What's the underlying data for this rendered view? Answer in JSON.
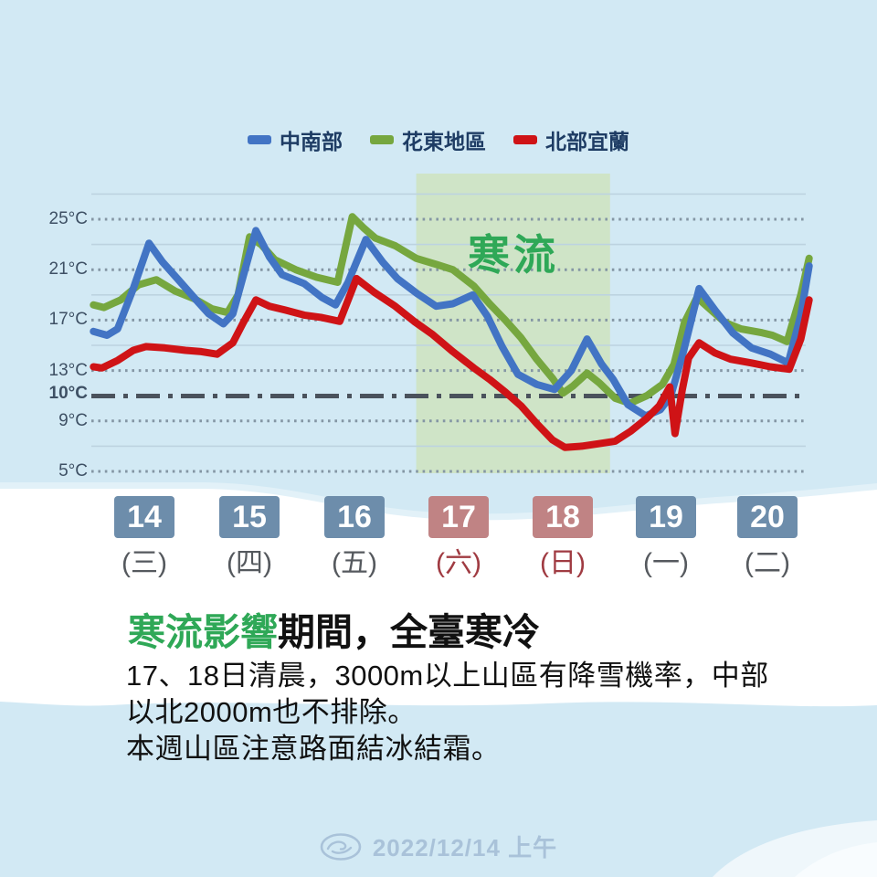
{
  "colors": {
    "background": "#d2e9f4",
    "band_white": "#ffffff",
    "band_fringe": "#e2f1f8",
    "line_blue": "#4274c4",
    "line_green": "#76a73f",
    "line_red": "#cf1316",
    "zone_fill": "#cfe4c7",
    "zone_label_green": "#2fa857",
    "grid_dotted": "#8496a4",
    "grid_minor": "#bdd3e0",
    "threshold": "#4a525c",
    "axis_label": "#3e5064",
    "legend_text": "#1e3c64",
    "date_box_blue": "#6d8dab",
    "date_box_red": "#c08384",
    "weekday_gray": "#55595e",
    "weekday_red": "#a03b42",
    "heading_green": "#2fa857",
    "footer_text": "#a9c2d9"
  },
  "legend": [
    {
      "label": "中南部",
      "color": "#4274c4"
    },
    {
      "label": "花東地區",
      "color": "#76a73f"
    },
    {
      "label": "北部宜蘭",
      "color": "#cf1316"
    }
  ],
  "chart_data": {
    "type": "line",
    "x_range": [
      13.6,
      20.45
    ],
    "ylim": [
      5,
      27
    ],
    "grid": true,
    "legend_position": "top-center",
    "y_ticks": [
      {
        "label": "25°C",
        "temp": 25,
        "style": "dotted"
      },
      {
        "label": "21°C",
        "temp": 21,
        "style": "dotted"
      },
      {
        "label": "17°C",
        "temp": 17,
        "style": "dotted"
      },
      {
        "label": "13°C",
        "temp": 13,
        "style": "dotted"
      },
      {
        "label": "10°C",
        "temp": 10,
        "style": "threshold"
      },
      {
        "label": "9°C",
        "temp": 9,
        "style": "dotted"
      },
      {
        "label": "5°C",
        "temp": 5,
        "style": "dotted"
      }
    ],
    "minor_gridlines": [
      27,
      23,
      19,
      15,
      7
    ],
    "cold_zone": {
      "label": "寒流",
      "x_start": 16.7,
      "x_end": 18.55
    },
    "series": [
      {
        "name": "花東地區",
        "color": "#76a73f",
        "points": [
          [
            13.62,
            18.2
          ],
          [
            13.72,
            18.0
          ],
          [
            13.88,
            18.6
          ],
          [
            14.05,
            19.8
          ],
          [
            14.22,
            20.2
          ],
          [
            14.4,
            19.3
          ],
          [
            14.58,
            18.7
          ],
          [
            14.75,
            17.9
          ],
          [
            14.9,
            17.6
          ],
          [
            15.0,
            19.0
          ],
          [
            15.11,
            23.6
          ],
          [
            15.22,
            23.0
          ],
          [
            15.35,
            21.8
          ],
          [
            15.55,
            21.0
          ],
          [
            15.75,
            20.4
          ],
          [
            15.95,
            20.0
          ],
          [
            16.09,
            25.2
          ],
          [
            16.2,
            24.3
          ],
          [
            16.31,
            23.5
          ],
          [
            16.5,
            22.9
          ],
          [
            16.7,
            21.9
          ],
          [
            16.9,
            21.4
          ],
          [
            17.05,
            21.0
          ],
          [
            17.25,
            19.7
          ],
          [
            17.4,
            18.3
          ],
          [
            17.55,
            17.0
          ],
          [
            17.7,
            15.6
          ],
          [
            17.85,
            13.9
          ],
          [
            18.0,
            12.4
          ],
          [
            18.1,
            11.2
          ],
          [
            18.2,
            11.8
          ],
          [
            18.33,
            12.8
          ],
          [
            18.45,
            12.0
          ],
          [
            18.6,
            10.8
          ],
          [
            18.74,
            10.4
          ],
          [
            18.9,
            11.0
          ],
          [
            19.05,
            11.9
          ],
          [
            19.16,
            13.5
          ],
          [
            19.26,
            16.8
          ],
          [
            19.38,
            18.8
          ],
          [
            19.5,
            17.9
          ],
          [
            19.65,
            16.8
          ],
          [
            19.8,
            16.3
          ],
          [
            20.0,
            16.0
          ],
          [
            20.1,
            15.8
          ],
          [
            20.24,
            15.3
          ],
          [
            20.37,
            19.0
          ],
          [
            20.45,
            21.9
          ]
        ]
      },
      {
        "name": "中南部",
        "color": "#4274c4",
        "points": [
          [
            13.62,
            16.1
          ],
          [
            13.75,
            15.8
          ],
          [
            13.85,
            16.3
          ],
          [
            14.0,
            19.5
          ],
          [
            14.15,
            23.1
          ],
          [
            14.28,
            21.6
          ],
          [
            14.43,
            20.2
          ],
          [
            14.6,
            18.6
          ],
          [
            14.72,
            17.5
          ],
          [
            14.86,
            16.7
          ],
          [
            14.95,
            17.5
          ],
          [
            15.05,
            20.5
          ],
          [
            15.17,
            24.1
          ],
          [
            15.3,
            22.0
          ],
          [
            15.42,
            20.6
          ],
          [
            15.63,
            19.9
          ],
          [
            15.8,
            18.8
          ],
          [
            15.93,
            18.2
          ],
          [
            16.05,
            20.0
          ],
          [
            16.22,
            23.4
          ],
          [
            16.38,
            21.6
          ],
          [
            16.52,
            20.3
          ],
          [
            16.71,
            19.1
          ],
          [
            16.89,
            18.1
          ],
          [
            17.05,
            18.3
          ],
          [
            17.24,
            19.0
          ],
          [
            17.38,
            17.3
          ],
          [
            17.52,
            14.9
          ],
          [
            17.67,
            12.7
          ],
          [
            17.85,
            11.9
          ],
          [
            18.02,
            11.5
          ],
          [
            18.18,
            13.0
          ],
          [
            18.33,
            15.5
          ],
          [
            18.47,
            13.5
          ],
          [
            18.58,
            12.3
          ],
          [
            18.72,
            10.3
          ],
          [
            18.89,
            9.4
          ],
          [
            19.03,
            9.9
          ],
          [
            19.13,
            11.0
          ],
          [
            19.25,
            14.5
          ],
          [
            19.4,
            19.5
          ],
          [
            19.56,
            17.7
          ],
          [
            19.72,
            16.0
          ],
          [
            19.9,
            14.8
          ],
          [
            20.08,
            14.3
          ],
          [
            20.25,
            13.6
          ],
          [
            20.37,
            17.4
          ],
          [
            20.45,
            21.3
          ]
        ]
      },
      {
        "name": "北部宜蘭",
        "color": "#cf1316",
        "points": [
          [
            13.62,
            13.3
          ],
          [
            13.7,
            13.2
          ],
          [
            13.85,
            13.8
          ],
          [
            14.0,
            14.6
          ],
          [
            14.12,
            14.9
          ],
          [
            14.3,
            14.8
          ],
          [
            14.5,
            14.6
          ],
          [
            14.65,
            14.5
          ],
          [
            14.8,
            14.3
          ],
          [
            14.95,
            15.2
          ],
          [
            15.05,
            16.8
          ],
          [
            15.17,
            18.6
          ],
          [
            15.3,
            18.1
          ],
          [
            15.45,
            17.8
          ],
          [
            15.63,
            17.4
          ],
          [
            15.8,
            17.2
          ],
          [
            15.97,
            16.9
          ],
          [
            16.13,
            20.3
          ],
          [
            16.3,
            19.2
          ],
          [
            16.5,
            18.1
          ],
          [
            16.68,
            16.9
          ],
          [
            16.85,
            15.9
          ],
          [
            17.05,
            14.5
          ],
          [
            17.25,
            13.2
          ],
          [
            17.4,
            12.3
          ],
          [
            17.55,
            11.3
          ],
          [
            17.7,
            10.2
          ],
          [
            17.85,
            8.8
          ],
          [
            18.0,
            7.5
          ],
          [
            18.12,
            6.9
          ],
          [
            18.28,
            7.0
          ],
          [
            18.45,
            7.2
          ],
          [
            18.6,
            7.4
          ],
          [
            18.75,
            8.2
          ],
          [
            18.9,
            9.2
          ],
          [
            19.02,
            10.2
          ],
          [
            19.12,
            11.7
          ],
          [
            19.17,
            8.0
          ],
          [
            19.24,
            11.5
          ],
          [
            19.3,
            14.0
          ],
          [
            19.4,
            15.2
          ],
          [
            19.55,
            14.4
          ],
          [
            19.7,
            13.9
          ],
          [
            19.9,
            13.6
          ],
          [
            20.08,
            13.3
          ],
          [
            20.26,
            13.1
          ],
          [
            20.37,
            15.5
          ],
          [
            20.45,
            18.6
          ]
        ]
      }
    ]
  },
  "dates": [
    {
      "day": "14",
      "week": "(三)",
      "weekend": false
    },
    {
      "day": "15",
      "week": "(四)",
      "weekend": false
    },
    {
      "day": "16",
      "week": "(五)",
      "weekend": false
    },
    {
      "day": "17",
      "week": "(六)",
      "weekend": true
    },
    {
      "day": "18",
      "week": "(日)",
      "weekend": true
    },
    {
      "day": "19",
      "week": "(一)",
      "weekend": false
    },
    {
      "day": "20",
      "week": "(二)",
      "weekend": false
    }
  ],
  "caption": {
    "highlight": "寒流影響",
    "rest": "期間，全臺寒冷",
    "lines": [
      "17、18日清晨，3000m以上山區有降雪機率，中部",
      "以北2000m也不排除。",
      "本週山區注意路面結冰結霜。"
    ]
  },
  "footer": {
    "timestamp": "2022/12/14 上午"
  }
}
